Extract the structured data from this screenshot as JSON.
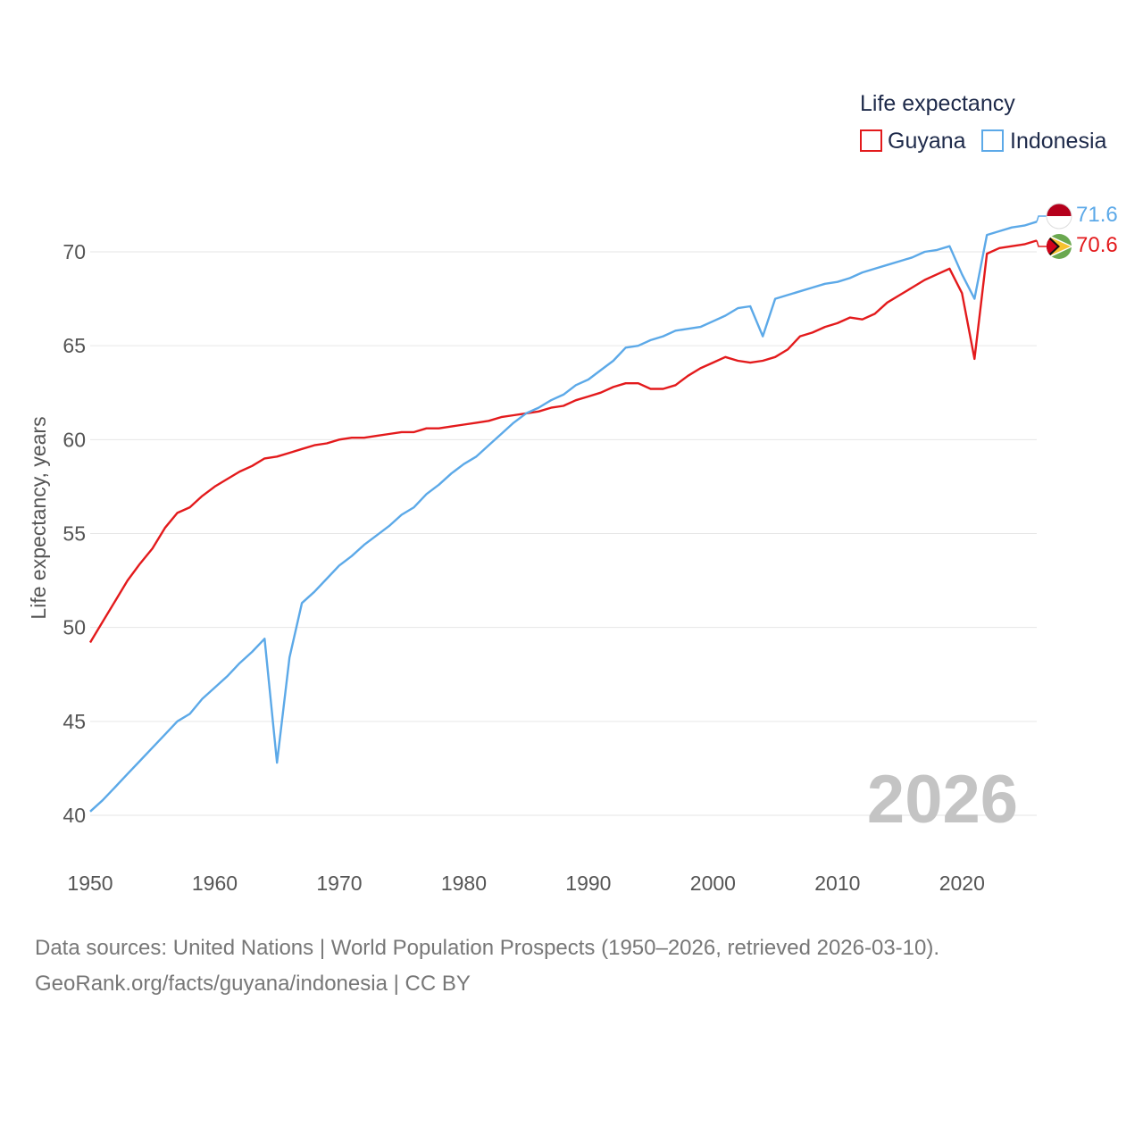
{
  "chart_data": {
    "type": "line",
    "ylabel": "Life expectancy, years",
    "xlabel": "",
    "xlim": [
      1950,
      2026
    ],
    "ylim": [
      40,
      72
    ],
    "yticks": [
      40,
      45,
      50,
      55,
      60,
      65,
      70
    ],
    "xticks": [
      1950,
      1960,
      1970,
      1980,
      1990,
      2000,
      2010,
      2020
    ],
    "grid": true,
    "legend_title": "Life expectancy",
    "legend_position": "top-right",
    "year_label": "2026",
    "x": [
      1950,
      1951,
      1952,
      1953,
      1954,
      1955,
      1956,
      1957,
      1958,
      1959,
      1960,
      1961,
      1962,
      1963,
      1964,
      1965,
      1966,
      1967,
      1968,
      1969,
      1970,
      1971,
      1972,
      1973,
      1974,
      1975,
      1976,
      1977,
      1978,
      1979,
      1980,
      1981,
      1982,
      1983,
      1984,
      1985,
      1986,
      1987,
      1988,
      1989,
      1990,
      1991,
      1992,
      1993,
      1994,
      1995,
      1996,
      1997,
      1998,
      1999,
      2000,
      2001,
      2002,
      2003,
      2004,
      2005,
      2006,
      2007,
      2008,
      2009,
      2010,
      2011,
      2012,
      2013,
      2014,
      2015,
      2016,
      2017,
      2018,
      2019,
      2020,
      2021,
      2022,
      2023,
      2024,
      2025,
      2026
    ],
    "series": [
      {
        "name": "Guyana",
        "color": "#e31a1c",
        "end_label": "70.6",
        "values": [
          49.2,
          50.3,
          51.4,
          52.5,
          53.4,
          54.2,
          55.3,
          56.1,
          56.4,
          57.0,
          57.5,
          57.9,
          58.3,
          58.6,
          59.0,
          59.1,
          59.3,
          59.5,
          59.7,
          59.8,
          60.0,
          60.1,
          60.1,
          60.2,
          60.3,
          60.4,
          60.4,
          60.6,
          60.6,
          60.7,
          60.8,
          60.9,
          61.0,
          61.2,
          61.3,
          61.4,
          61.5,
          61.7,
          61.8,
          62.1,
          62.3,
          62.5,
          62.8,
          63.0,
          63.0,
          62.7,
          62.7,
          62.9,
          63.4,
          63.8,
          64.1,
          64.4,
          64.2,
          64.1,
          64.2,
          64.4,
          64.8,
          65.5,
          65.7,
          66.0,
          66.2,
          66.5,
          66.4,
          66.7,
          67.3,
          67.7,
          68.1,
          68.5,
          68.8,
          69.1,
          67.8,
          64.3,
          69.9,
          70.2,
          70.3,
          70.4,
          70.6
        ]
      },
      {
        "name": "Indonesia",
        "color": "#5ca9e8",
        "end_label": "71.6",
        "values": [
          40.2,
          40.8,
          41.5,
          42.2,
          42.9,
          43.6,
          44.3,
          45.0,
          45.4,
          46.2,
          46.8,
          47.4,
          48.1,
          48.7,
          49.4,
          42.8,
          48.4,
          51.3,
          51.9,
          52.6,
          53.3,
          53.8,
          54.4,
          54.9,
          55.4,
          56.0,
          56.4,
          57.1,
          57.6,
          58.2,
          58.7,
          59.1,
          59.7,
          60.3,
          60.9,
          61.4,
          61.7,
          62.1,
          62.4,
          62.9,
          63.2,
          63.7,
          64.2,
          64.9,
          65.0,
          65.3,
          65.5,
          65.8,
          65.9,
          66.0,
          66.3,
          66.6,
          67.0,
          67.1,
          65.5,
          67.5,
          67.7,
          67.9,
          68.1,
          68.3,
          68.4,
          68.6,
          68.9,
          69.1,
          69.3,
          69.5,
          69.7,
          70.0,
          70.1,
          70.3,
          68.8,
          67.5,
          70.9,
          71.1,
          71.3,
          71.4,
          71.6
        ]
      }
    ]
  },
  "source": {
    "line1": "Data sources: United Nations | World Population Prospects (1950–2026, retrieved 2026-03-10).",
    "line2": "GeoRank.org/facts/guyana/indonesia | CC BY"
  }
}
